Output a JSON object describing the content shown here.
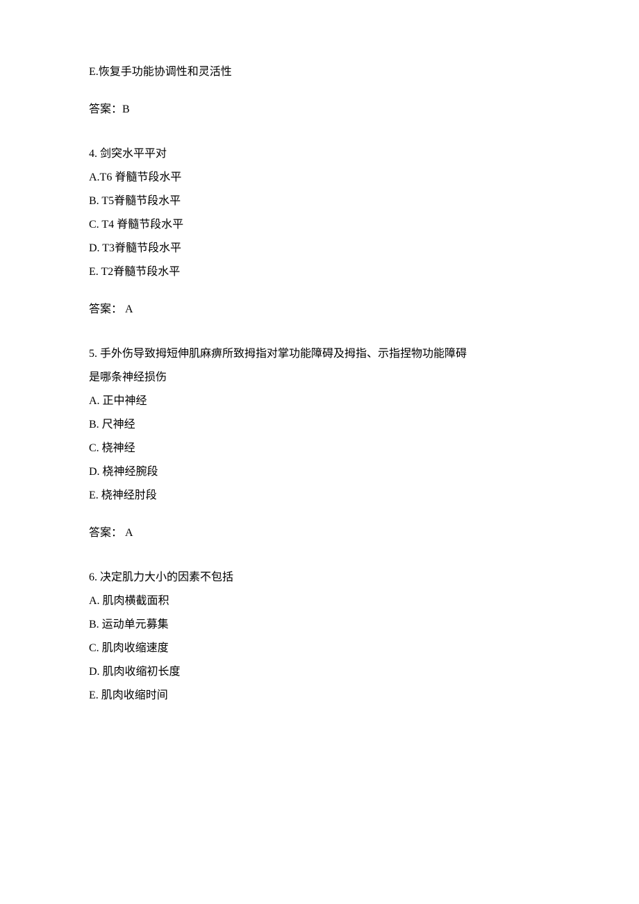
{
  "q3_partial": {
    "optionE": "E.恢复手功能协调性和灵活性",
    "answer": "答案：B"
  },
  "q4": {
    "stem": "4. 剑突水平平对",
    "optionA": "A.T6 脊髓节段水平",
    "optionB": "B. T5脊髓节段水平",
    "optionC": "C. T4 脊髓节段水平",
    "optionD": "D. T3脊髓节段水平",
    "optionE": "E. T2脊髓节段水平",
    "answer": "答案： A"
  },
  "q5": {
    "stem_line1": "5. 手外伤导致拇短伸肌麻痹所致拇指对掌功能障碍及拇指、示指捏物功能障碍",
    "stem_line2": "是哪条神经损伤",
    "optionA": "A. 正中神经",
    "optionB": "B. 尺神经",
    "optionC": "C. 桡神经",
    "optionD": "D. 桡神经腕段",
    "optionE": "E. 桡神经肘段",
    "answer": "答案： A"
  },
  "q6": {
    "stem": "6. 决定肌力大小的因素不包括",
    "optionA": "A. 肌肉横截面积",
    "optionB": "B. 运动单元募集",
    "optionC": "C. 肌肉收缩速度",
    "optionD": "D. 肌肉收缩初长度",
    "optionE": "E. 肌肉收缩时间"
  }
}
